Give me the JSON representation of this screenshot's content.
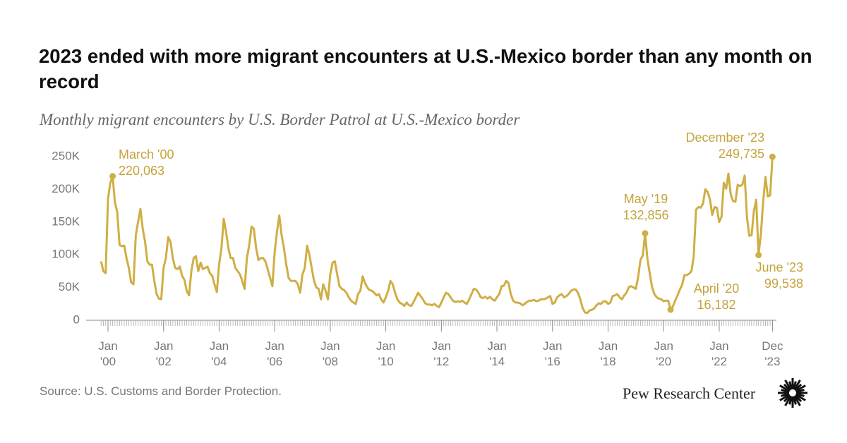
{
  "chart_data": {
    "type": "line",
    "title": "2023 ended with more migrant encounters at U.S.-Mexico border than any month on record",
    "subtitle": "Monthly migrant encounters by U.S. Border Patrol at U.S.-Mexico border",
    "source": "Source: U.S. Customs and Border Protection.",
    "credit": "Pew Research Center",
    "x": [
      "1999-10",
      "1999-11",
      "1999-12",
      "2000-01",
      "2000-02",
      "2000-03",
      "2000-04",
      "2000-05",
      "2000-06",
      "2000-07",
      "2000-08",
      "2000-09",
      "2000-10",
      "2000-11",
      "2000-12",
      "2001-01",
      "2001-02",
      "2001-03",
      "2001-04",
      "2001-05",
      "2001-06",
      "2001-07",
      "2001-08",
      "2001-09",
      "2001-10",
      "2001-11",
      "2001-12",
      "2002-01",
      "2002-02",
      "2002-03",
      "2002-04",
      "2002-05",
      "2002-06",
      "2002-07",
      "2002-08",
      "2002-09",
      "2002-10",
      "2002-11",
      "2002-12",
      "2003-01",
      "2003-02",
      "2003-03",
      "2003-04",
      "2003-05",
      "2003-06",
      "2003-07",
      "2003-08",
      "2003-09",
      "2003-10",
      "2003-11",
      "2003-12",
      "2004-01",
      "2004-02",
      "2004-03",
      "2004-04",
      "2004-05",
      "2004-06",
      "2004-07",
      "2004-08",
      "2004-09",
      "2004-10",
      "2004-11",
      "2004-12",
      "2005-01",
      "2005-02",
      "2005-03",
      "2005-04",
      "2005-05",
      "2005-06",
      "2005-07",
      "2005-08",
      "2005-09",
      "2005-10",
      "2005-11",
      "2005-12",
      "2006-01",
      "2006-02",
      "2006-03",
      "2006-04",
      "2006-05",
      "2006-06",
      "2006-07",
      "2006-08",
      "2006-09",
      "2006-10",
      "2006-11",
      "2006-12",
      "2007-01",
      "2007-02",
      "2007-03",
      "2007-04",
      "2007-05",
      "2007-06",
      "2007-07",
      "2007-08",
      "2007-09",
      "2007-10",
      "2007-11",
      "2007-12",
      "2008-01",
      "2008-02",
      "2008-03",
      "2008-04",
      "2008-05",
      "2008-06",
      "2008-07",
      "2008-08",
      "2008-09",
      "2008-10",
      "2008-11",
      "2008-12",
      "2009-01",
      "2009-02",
      "2009-03",
      "2009-04",
      "2009-05",
      "2009-06",
      "2009-07",
      "2009-08",
      "2009-09",
      "2009-10",
      "2009-11",
      "2009-12",
      "2010-01",
      "2010-02",
      "2010-03",
      "2010-04",
      "2010-05",
      "2010-06",
      "2010-07",
      "2010-08",
      "2010-09",
      "2010-10",
      "2010-11",
      "2010-12",
      "2011-01",
      "2011-02",
      "2011-03",
      "2011-04",
      "2011-05",
      "2011-06",
      "2011-07",
      "2011-08",
      "2011-09",
      "2011-10",
      "2011-11",
      "2011-12",
      "2012-01",
      "2012-02",
      "2012-03",
      "2012-04",
      "2012-05",
      "2012-06",
      "2012-07",
      "2012-08",
      "2012-09",
      "2012-10",
      "2012-11",
      "2012-12",
      "2013-01",
      "2013-02",
      "2013-03",
      "2013-04",
      "2013-05",
      "2013-06",
      "2013-07",
      "2013-08",
      "2013-09",
      "2013-10",
      "2013-11",
      "2013-12",
      "2014-01",
      "2014-02",
      "2014-03",
      "2014-04",
      "2014-05",
      "2014-06",
      "2014-07",
      "2014-08",
      "2014-09",
      "2014-10",
      "2014-11",
      "2014-12",
      "2015-01",
      "2015-02",
      "2015-03",
      "2015-04",
      "2015-05",
      "2015-06",
      "2015-07",
      "2015-08",
      "2015-09",
      "2015-10",
      "2015-11",
      "2015-12",
      "2016-01",
      "2016-02",
      "2016-03",
      "2016-04",
      "2016-05",
      "2016-06",
      "2016-07",
      "2016-08",
      "2016-09",
      "2016-10",
      "2016-11",
      "2016-12",
      "2017-01",
      "2017-02",
      "2017-03",
      "2017-04",
      "2017-05",
      "2017-06",
      "2017-07",
      "2017-08",
      "2017-09",
      "2017-10",
      "2017-11",
      "2017-12",
      "2018-01",
      "2018-02",
      "2018-03",
      "2018-04",
      "2018-05",
      "2018-06",
      "2018-07",
      "2018-08",
      "2018-09",
      "2018-10",
      "2018-11",
      "2018-12",
      "2019-01",
      "2019-02",
      "2019-03",
      "2019-04",
      "2019-05",
      "2019-06",
      "2019-07",
      "2019-08",
      "2019-09",
      "2019-10",
      "2019-11",
      "2019-12",
      "2020-01",
      "2020-02",
      "2020-03",
      "2020-04",
      "2020-05",
      "2020-06",
      "2020-07",
      "2020-08",
      "2020-09",
      "2020-10",
      "2020-11",
      "2020-12",
      "2021-01",
      "2021-02",
      "2021-03",
      "2021-04",
      "2021-05",
      "2021-06",
      "2021-07",
      "2021-08",
      "2021-09",
      "2021-10",
      "2021-11",
      "2021-12",
      "2022-01",
      "2022-02",
      "2022-03",
      "2022-04",
      "2022-05",
      "2022-06",
      "2022-07",
      "2022-08",
      "2022-09",
      "2022-10",
      "2022-11",
      "2022-12",
      "2023-01",
      "2023-02",
      "2023-03",
      "2023-04",
      "2023-05",
      "2023-06",
      "2023-07",
      "2023-08",
      "2023-09",
      "2023-10",
      "2023-11",
      "2023-12"
    ],
    "series": [
      {
        "name": "Monthly migrant encounters",
        "color": "#cfae45",
        "values": [
          90000,
          75000,
          72000,
          185000,
          210000,
          220063,
          180000,
          165000,
          115000,
          113000,
          114000,
          95000,
          80000,
          58000,
          55000,
          130000,
          150000,
          170000,
          140000,
          120000,
          90000,
          85000,
          85000,
          60000,
          40000,
          33000,
          32000,
          80000,
          95000,
          127000,
          120000,
          95000,
          80000,
          78000,
          82000,
          68000,
          62000,
          45000,
          38000,
          75000,
          95000,
          98000,
          75000,
          88000,
          78000,
          80000,
          82000,
          72000,
          68000,
          55000,
          43000,
          85000,
          110000,
          155000,
          135000,
          110000,
          95000,
          95000,
          80000,
          75000,
          70000,
          60000,
          48000,
          95000,
          115000,
          143000,
          140000,
          110000,
          92000,
          95000,
          95000,
          90000,
          78000,
          65000,
          52000,
          105000,
          135000,
          160000,
          130000,
          110000,
          85000,
          65000,
          60000,
          60000,
          60000,
          55000,
          42000,
          70000,
          80000,
          114000,
          100000,
          80000,
          60000,
          50000,
          48000,
          32000,
          55000,
          45000,
          32000,
          70000,
          88000,
          90000,
          70000,
          52000,
          48000,
          46000,
          42000,
          35000,
          30000,
          27000,
          25000,
          40000,
          45000,
          67000,
          57000,
          50000,
          46000,
          45000,
          42000,
          38000,
          40000,
          32000,
          27000,
          35000,
          45000,
          60000,
          55000,
          42000,
          32000,
          27000,
          25000,
          22000,
          27000,
          23000,
          22000,
          28000,
          35000,
          42000,
          37000,
          32000,
          26000,
          24000,
          24000,
          23000,
          25000,
          22000,
          20000,
          27000,
          35000,
          42000,
          40000,
          35000,
          30000,
          28000,
          29000,
          28000,
          30000,
          27000,
          25000,
          32000,
          40000,
          48000,
          47000,
          42000,
          35000,
          34000,
          36000,
          33000,
          36000,
          32000,
          30000,
          35000,
          40000,
          52000,
          53000,
          60000,
          57000,
          40000,
          30000,
          27000,
          27000,
          26000,
          23000,
          25000,
          28000,
          30000,
          30000,
          31000,
          29000,
          30000,
          32000,
          32000,
          33000,
          35000,
          37000,
          25000,
          27000,
          35000,
          38000,
          40000,
          35000,
          37000,
          40000,
          45000,
          47000,
          47000,
          42000,
          32000,
          19000,
          12000,
          11000,
          15000,
          16000,
          18000,
          23000,
          26000,
          25000,
          29000,
          29000,
          25000,
          27000,
          37000,
          38000,
          40000,
          35000,
          32000,
          38000,
          42000,
          51000,
          52000,
          50000,
          48000,
          66000,
          92000,
          99000,
          132856,
          94000,
          72000,
          51000,
          40000,
          35000,
          33000,
          32000,
          29000,
          30000,
          30000,
          16182,
          21000,
          30000,
          38000,
          47000,
          54000,
          69000,
          69000,
          71000,
          75000,
          97000,
          169000,
          173000,
          172000,
          178000,
          200000,
          196000,
          185000,
          161000,
          173000,
          172000,
          150000,
          158000,
          210000,
          201000,
          224000,
          192000,
          182000,
          181000,
          207000,
          205000,
          207000,
          221000,
          157000,
          129000,
          130000,
          167000,
          184000,
          99538,
          132000,
          181000,
          219000,
          189000,
          191000,
          249735
        ]
      }
    ],
    "annotations": [
      {
        "at": "2000-03",
        "text": "March '00",
        "value_label": "220,063"
      },
      {
        "at": "2019-05",
        "text": "May '19",
        "value_label": "132,856"
      },
      {
        "at": "2020-04",
        "text": "April '20",
        "value_label": "16,182"
      },
      {
        "at": "2023-06",
        "text": "June '23",
        "value_label": "99,538"
      },
      {
        "at": "2023-12",
        "text": "December '23",
        "value_label": "249,735"
      }
    ],
    "ylim": [
      0,
      250000
    ],
    "yticks": [
      0,
      {
        "value": 50000,
        "label": "50K"
      },
      {
        "value": 100000,
        "label": "100K"
      },
      {
        "value": 150000,
        "label": "150K"
      },
      {
        "value": 200000,
        "label": "200K"
      },
      {
        "value": 250000,
        "label": "250K"
      }
    ],
    "xticks": [
      {
        "value": "2000-01",
        "label": [
          "Jan",
          "'00"
        ]
      },
      {
        "value": "2002-01",
        "label": [
          "Jan",
          "'02"
        ]
      },
      {
        "value": "2004-01",
        "label": [
          "Jan",
          "'04"
        ]
      },
      {
        "value": "2006-01",
        "label": [
          "Jan",
          "'06"
        ]
      },
      {
        "value": "2008-01",
        "label": [
          "Jan",
          "'08"
        ]
      },
      {
        "value": "2010-01",
        "label": [
          "Jan",
          "'10"
        ]
      },
      {
        "value": "2012-01",
        "label": [
          "Jan",
          "'12"
        ]
      },
      {
        "value": "2014-01",
        "label": [
          "Jan",
          "'14"
        ]
      },
      {
        "value": "2016-01",
        "label": [
          "Jan",
          "'16"
        ]
      },
      {
        "value": "2018-01",
        "label": [
          "Jan",
          "'18"
        ]
      },
      {
        "value": "2020-01",
        "label": [
          "Jan",
          "'20"
        ]
      },
      {
        "value": "2022-01",
        "label": [
          "Jan",
          "'22"
        ]
      },
      {
        "value": "2023-12",
        "label": [
          "Dec",
          "'23"
        ]
      }
    ],
    "grid": false
  }
}
